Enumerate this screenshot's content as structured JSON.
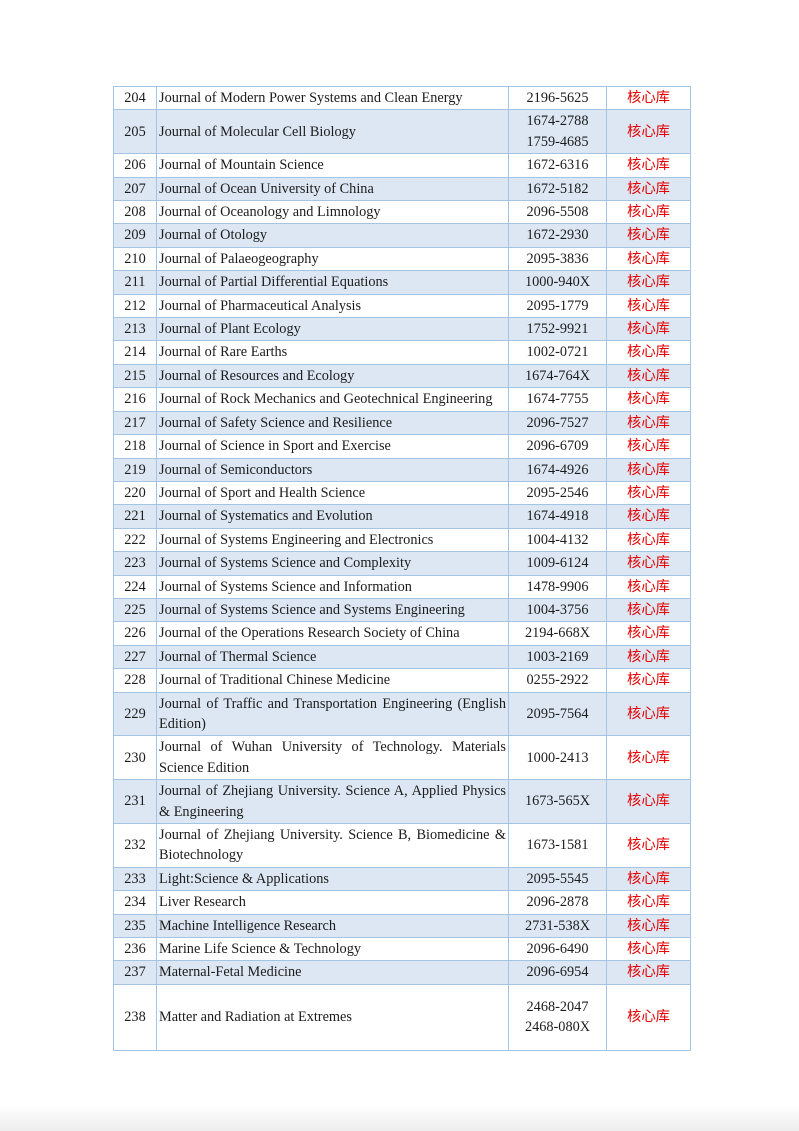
{
  "page": {
    "background_color": "#ffffff"
  },
  "table": {
    "colors": {
      "border": "#a3c4e2",
      "stripe": "#dce7f3",
      "text": "#1c1c1c",
      "tag_text": "#e60000"
    },
    "columns": [
      "number",
      "journal_title",
      "issn",
      "tag"
    ],
    "rows": [
      {
        "no": "204",
        "title": "Journal of Modern Power Systems and Clean Energy",
        "issn": [
          "2196-5625"
        ],
        "tag": "核心库"
      },
      {
        "no": "205",
        "title": "Journal of Molecular Cell Biology",
        "issn": [
          "1674-2788",
          "1759-4685"
        ],
        "tag": "核心库"
      },
      {
        "no": "206",
        "title": "Journal of Mountain Science",
        "issn": [
          "1672-6316"
        ],
        "tag": "核心库"
      },
      {
        "no": "207",
        "title": "Journal of Ocean University of China",
        "issn": [
          "1672-5182"
        ],
        "tag": "核心库"
      },
      {
        "no": "208",
        "title": "Journal of Oceanology and Limnology",
        "issn": [
          "2096-5508"
        ],
        "tag": "核心库"
      },
      {
        "no": "209",
        "title": "Journal of Otology",
        "issn": [
          "1672-2930"
        ],
        "tag": "核心库"
      },
      {
        "no": "210",
        "title": "Journal of Palaeogeography",
        "issn": [
          "2095-3836"
        ],
        "tag": "核心库"
      },
      {
        "no": "211",
        "title": "Journal of Partial Differential Equations",
        "issn": [
          "1000-940X"
        ],
        "tag": "核心库"
      },
      {
        "no": "212",
        "title": "Journal of Pharmaceutical Analysis",
        "issn": [
          "2095-1779"
        ],
        "tag": "核心库"
      },
      {
        "no": "213",
        "title": "Journal of Plant Ecology",
        "issn": [
          "1752-9921"
        ],
        "tag": "核心库"
      },
      {
        "no": "214",
        "title": "Journal of Rare Earths",
        "issn": [
          "1002-0721"
        ],
        "tag": "核心库"
      },
      {
        "no": "215",
        "title": "Journal of Resources and Ecology",
        "issn": [
          "1674-764X"
        ],
        "tag": "核心库"
      },
      {
        "no": "216",
        "title": "Journal of Rock Mechanics and Geotechnical Engineering",
        "issn": [
          "1674-7755"
        ],
        "tag": "核心库"
      },
      {
        "no": "217",
        "title": "Journal of Safety Science and Resilience",
        "issn": [
          "2096-7527"
        ],
        "tag": "核心库"
      },
      {
        "no": "218",
        "title": "Journal of Science in Sport and Exercise",
        "issn": [
          "2096-6709"
        ],
        "tag": "核心库"
      },
      {
        "no": "219",
        "title": "Journal of Semiconductors",
        "issn": [
          "1674-4926"
        ],
        "tag": "核心库"
      },
      {
        "no": "220",
        "title": "Journal of Sport and Health Science",
        "issn": [
          "2095-2546"
        ],
        "tag": "核心库"
      },
      {
        "no": "221",
        "title": "Journal of Systematics and Evolution",
        "issn": [
          "1674-4918"
        ],
        "tag": "核心库"
      },
      {
        "no": "222",
        "title": "Journal of Systems Engineering and Electronics",
        "issn": [
          "1004-4132"
        ],
        "tag": "核心库"
      },
      {
        "no": "223",
        "title": "Journal of Systems Science and Complexity",
        "issn": [
          "1009-6124"
        ],
        "tag": "核心库"
      },
      {
        "no": "224",
        "title": "Journal of Systems Science and Information",
        "issn": [
          "1478-9906"
        ],
        "tag": "核心库"
      },
      {
        "no": "225",
        "title": "Journal of Systems Science and Systems Engineering",
        "issn": [
          "1004-3756"
        ],
        "tag": "核心库"
      },
      {
        "no": "226",
        "title": "Journal of the Operations Research Society of China",
        "issn": [
          "2194-668X"
        ],
        "tag": "核心库"
      },
      {
        "no": "227",
        "title": "Journal of Thermal Science",
        "issn": [
          "1003-2169"
        ],
        "tag": "核心库"
      },
      {
        "no": "228",
        "title": "Journal of Traditional Chinese Medicine",
        "issn": [
          "0255-2922"
        ],
        "tag": "核心库"
      },
      {
        "no": "229",
        "title": "Journal of Traffic and Transportation Engineering (English Edition)",
        "issn": [
          "2095-7564"
        ],
        "tag": "核心库"
      },
      {
        "no": "230",
        "title": "Journal of Wuhan University of Technology. Materials Science Edition",
        "issn": [
          "1000-2413"
        ],
        "tag": "核心库"
      },
      {
        "no": "231",
        "title": "Journal of Zhejiang University. Science A, Applied Physics & Engineering",
        "issn": [
          "1673-565X"
        ],
        "tag": "核心库"
      },
      {
        "no": "232",
        "title": "Journal of Zhejiang University. Science B, Biomedicine & Biotechnology",
        "issn": [
          "1673-1581"
        ],
        "tag": "核心库"
      },
      {
        "no": "233",
        "title": "Light:Science & Applications",
        "issn": [
          "2095-5545"
        ],
        "tag": "核心库"
      },
      {
        "no": "234",
        "title": "Liver Research",
        "issn": [
          "2096-2878"
        ],
        "tag": "核心库"
      },
      {
        "no": "235",
        "title": "Machine Intelligence Research",
        "issn": [
          "2731-538X"
        ],
        "tag": "核心库"
      },
      {
        "no": "236",
        "title": "Marine Life Science & Technology",
        "issn": [
          "2096-6490"
        ],
        "tag": "核心库"
      },
      {
        "no": "237",
        "title": "Maternal-Fetal Medicine",
        "issn": [
          "2096-6954"
        ],
        "tag": "核心库"
      },
      {
        "no": "238",
        "title": "Matter and Radiation at Extremes",
        "issn": [
          "2468-2047",
          "2468-080X"
        ],
        "tag": "核心库"
      }
    ]
  }
}
